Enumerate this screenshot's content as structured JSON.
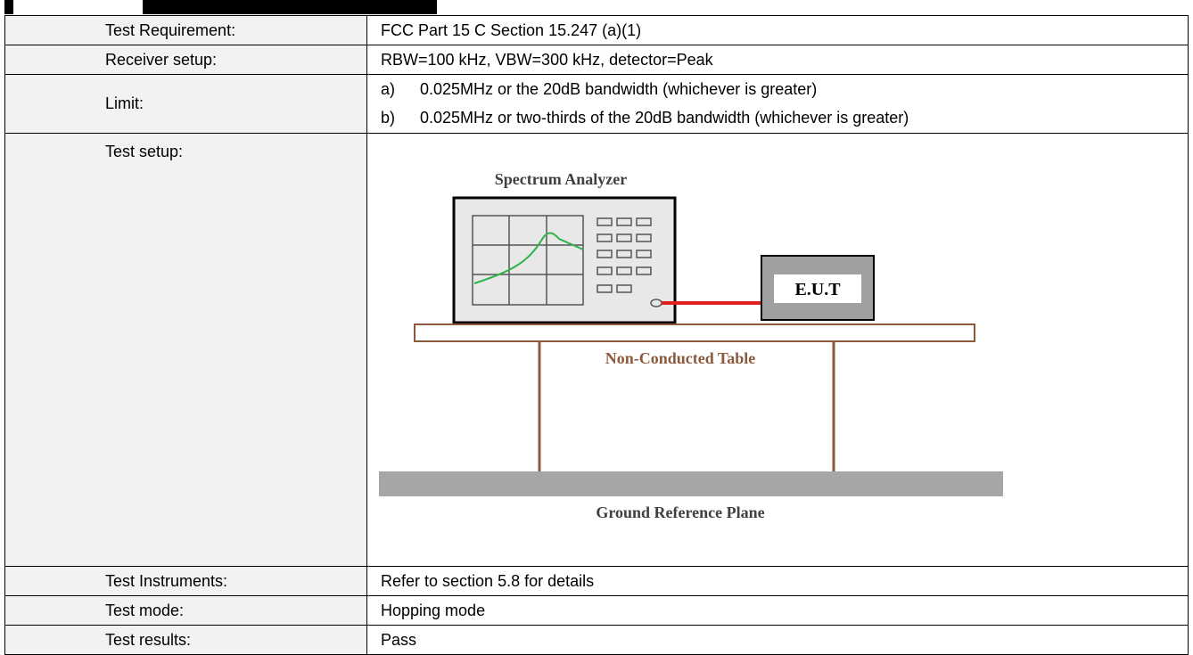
{
  "table": {
    "rows": [
      {
        "label": "Test Requirement:",
        "value": "FCC Part 15 C Section 15.247 (a)(1)"
      },
      {
        "label": "Receiver setup:",
        "value": "RBW=100 kHz, VBW=300 kHz, detector=Peak"
      },
      {
        "label": "Limit:",
        "items": [
          {
            "marker": "a)",
            "text": "0.025MHz or the 20dB bandwidth (whichever is greater)"
          },
          {
            "marker": "b)",
            "text": "0.025MHz or two-thirds of the 20dB bandwidth (whichever is greater)"
          }
        ]
      },
      {
        "label": "Test setup:",
        "diagram": {
          "analyzer": "Spectrum Analyzer",
          "eut": "E.U.T",
          "table": "Non-Conducted Table",
          "ground": "Ground Reference Plane"
        }
      },
      {
        "label": "Test Instruments:",
        "value": "Refer to section 5.8 for details"
      },
      {
        "label": "Test mode:",
        "value": "Hopping mode"
      },
      {
        "label": "Test results:",
        "value": "Pass"
      }
    ]
  }
}
